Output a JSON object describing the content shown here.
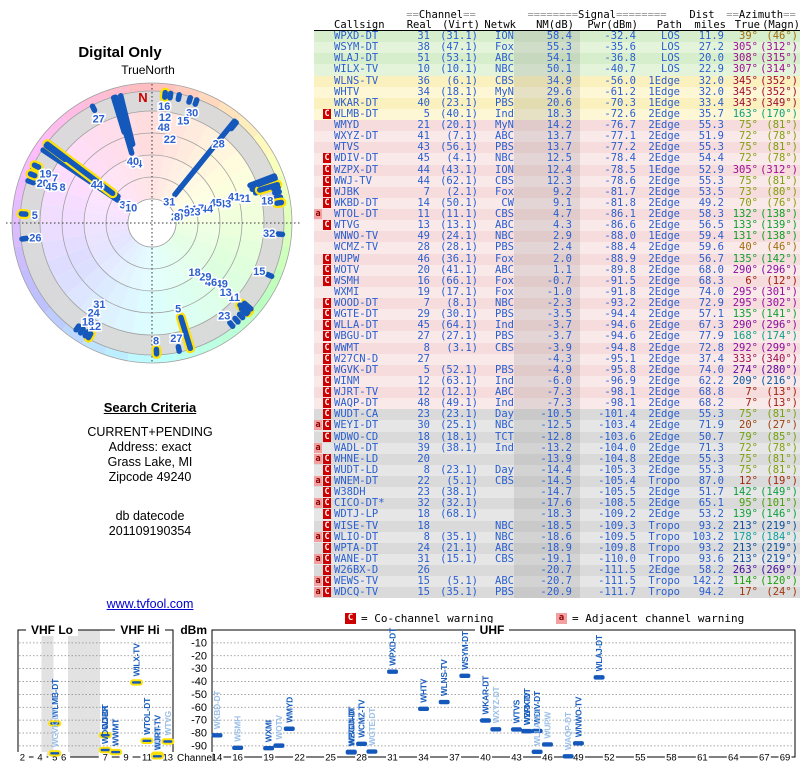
{
  "title": "Digital Only",
  "polar_labels": {
    "true_north": "TrueNorth",
    "north": "N"
  },
  "search": {
    "heading": "Search Criteria",
    "lines": [
      "CURRENT+PENDING",
      "Address: exact",
      "Grass Lake, MI",
      "Zipcode 49240"
    ],
    "db_lines": [
      "db datecode",
      "201109190354"
    ]
  },
  "footer_link": "www.tvfool.com",
  "table_header": {
    "eq2": "==",
    "eq8": "========",
    "group_channel": "Channel",
    "group_signal": "Signal",
    "group_dist": "Dist",
    "group_azimuth": "Azimuth",
    "cols": [
      "Callsign",
      "Real",
      "(Virt)",
      "Netwk",
      "NM(dB)",
      "Pwr(dBm)",
      "Path",
      "miles",
      "True",
      "(Magn)"
    ]
  },
  "legend": {
    "co_symbol": "C",
    "co_text": "= Co-channel warning",
    "adj_symbol": "a",
    "adj_text": "= Adjacent channel warning"
  },
  "bottom_axis": {
    "vhf_lo": "VHF Lo",
    "vhf_hi": "VHF Hi",
    "uhf": "UHF",
    "dbm": "dBm",
    "channel": "Channel",
    "dbm_ticks": [
      -10,
      -20,
      -30,
      -40,
      -50,
      -60,
      -70,
      -80,
      -90
    ],
    "vhf_ticks": [
      2,
      4,
      5,
      6,
      7,
      9,
      11,
      13
    ],
    "uhf_ticks": [
      14,
      16,
      19,
      22,
      25,
      28,
      31,
      34,
      37,
      40,
      43,
      46,
      49,
      52,
      55,
      58,
      61,
      64,
      67,
      69
    ]
  },
  "colors": {
    "data_blue": "#2A5FD0",
    "bar_blue": "#1458BB",
    "vhf_outline": "#FFE10A",
    "muted_label": "#9CC0E8",
    "label_blue": "#1B5FBE",
    "co_bg": "#CC0000",
    "adj_bg": "#F2A0A0",
    "band_green": "#D7EECD",
    "band_yellow": "#FAF1BE",
    "band_pink": "#F6DCDC",
    "band_gray": "#DADADA",
    "north_red": "#CC0000",
    "link_blue": "#0000CC"
  },
  "chart_data": {
    "type": "composite",
    "polar": {
      "rings": [
        24,
        46,
        68,
        90,
        112,
        132,
        140
      ],
      "bar_outer_r": 131
    },
    "bottom": {
      "pwr_visible_min": -99
    },
    "muted_bottom_labels": [
      "WKBD-DT",
      "WTVG",
      "WSMH",
      "WOTV",
      "WGTE-DT",
      "WGVK-DT",
      "WINM",
      "WLLA-DT",
      "WUPW",
      "WAQP-DT",
      "WXYZ-DT"
    ],
    "stations": [
      {
        "warn": "",
        "call": "WPXD-DT",
        "real": 31,
        "virt": "(31.1)",
        "net": "ION",
        "nm": 58.4,
        "pwr": -32.4,
        "path": "LOS",
        "miles": 11.9,
        "az": 39,
        "mag": 46
      },
      {
        "warn": "",
        "call": "WSYM-DT",
        "real": 38,
        "virt": "(47.1)",
        "net": "Fox",
        "nm": 55.3,
        "pwr": -35.6,
        "path": "LOS",
        "miles": 27.2,
        "az": 305,
        "mag": 312
      },
      {
        "warn": "",
        "call": "WLAJ-DT",
        "real": 51,
        "virt": "(53.1)",
        "net": "ABC",
        "nm": 54.1,
        "pwr": -36.8,
        "path": "LOS",
        "miles": 20.0,
        "az": 308,
        "mag": 315
      },
      {
        "warn": "",
        "call": "WILX-TV",
        "real": 10,
        "virt": "(10.1)",
        "net": "NBC",
        "nm": 50.1,
        "pwr": -40.7,
        "path": "LOS",
        "miles": 22.9,
        "az": 307,
        "mag": 314
      },
      {
        "warn": "",
        "call": "WLNS-TV",
        "real": 36,
        "virt": "(6.1)",
        "net": "CBS",
        "nm": 34.9,
        "pwr": -56.0,
        "path": "1Edge",
        "miles": 32.0,
        "az": 345,
        "mag": 352
      },
      {
        "warn": "",
        "call": "WHTV",
        "real": 34,
        "virt": "(18.1)",
        "net": "MyN",
        "nm": 29.6,
        "pwr": -61.2,
        "path": "1Edge",
        "miles": 32.0,
        "az": 345,
        "mag": 352
      },
      {
        "warn": "",
        "call": "WKAR-DT",
        "real": 40,
        "virt": "(23.1)",
        "net": "PBS",
        "nm": 20.6,
        "pwr": -70.3,
        "path": "1Edge",
        "miles": 33.4,
        "az": 343,
        "mag": 349
      },
      {
        "warn": "C",
        "call": "WLMB-DT",
        "real": 5,
        "virt": "(40.1)",
        "net": "Ind",
        "nm": 18.3,
        "pwr": -72.6,
        "path": "2Edge",
        "miles": 35.7,
        "az": 163,
        "mag": 170
      },
      {
        "warn": "",
        "call": "WMYD",
        "real": 21,
        "virt": "(20.1)",
        "net": "MyN",
        "nm": 14.2,
        "pwr": -76.7,
        "path": "2Edge",
        "miles": 55.3,
        "az": 75,
        "mag": 81
      },
      {
        "warn": "",
        "call": "WXYZ-DT",
        "real": 41,
        "virt": "(7.1)",
        "net": "ABC",
        "nm": 13.7,
        "pwr": -77.1,
        "path": "2Edge",
        "miles": 51.9,
        "az": 72,
        "mag": 78
      },
      {
        "warn": "",
        "call": "WTVS",
        "real": 43,
        "virt": "(56.1)",
        "net": "PBS",
        "nm": 13.7,
        "pwr": -77.2,
        "path": "2Edge",
        "miles": 55.3,
        "az": 75,
        "mag": 81
      },
      {
        "warn": "C",
        "call": "WDIV-DT",
        "real": 45,
        "virt": "(4.1)",
        "net": "NBC",
        "nm": 12.5,
        "pwr": -78.4,
        "path": "2Edge",
        "miles": 54.4,
        "az": 72,
        "mag": 78
      },
      {
        "warn": "C",
        "call": "WZPX-DT",
        "real": 44,
        "virt": "(43.1)",
        "net": "ION",
        "nm": 12.4,
        "pwr": -78.5,
        "path": "1Edge",
        "miles": 52.9,
        "az": 305,
        "mag": 312
      },
      {
        "warn": "C",
        "call": "WWJ-TV",
        "real": 44,
        "virt": "(62.1)",
        "net": "CBS",
        "nm": 12.3,
        "pwr": -78.6,
        "path": "2Edge",
        "miles": 55.3,
        "az": 75,
        "mag": 81
      },
      {
        "warn": "C",
        "call": "WJBK",
        "real": 7,
        "virt": "(2.1)",
        "net": "Fox",
        "nm": 9.2,
        "pwr": -81.7,
        "path": "2Edge",
        "miles": 53.5,
        "az": 73,
        "mag": 80
      },
      {
        "warn": "C",
        "call": "WKBD-DT",
        "real": 14,
        "virt": "(50.1)",
        "net": "CW",
        "nm": 9.1,
        "pwr": -81.8,
        "path": "2Edge",
        "miles": 49.2,
        "az": 70,
        "mag": 76
      },
      {
        "warn": "a",
        "call": "WTOL-DT",
        "real": 11,
        "virt": "(11.1)",
        "net": "CBS",
        "nm": 4.7,
        "pwr": -86.1,
        "path": "2Edge",
        "miles": 58.3,
        "az": 132,
        "mag": 138
      },
      {
        "warn": "C",
        "call": "WTVG",
        "real": 13,
        "virt": "(13.1)",
        "net": "ABC",
        "nm": 4.3,
        "pwr": -86.6,
        "path": "2Edge",
        "miles": 56.5,
        "az": 133,
        "mag": 139
      },
      {
        "warn": "",
        "call": "WNWO-TV",
        "real": 49,
        "virt": "(24.1)",
        "net": "NBC",
        "nm": 2.9,
        "pwr": -88.0,
        "path": "1Edge",
        "miles": 59.4,
        "az": 131,
        "mag": 138
      },
      {
        "warn": "",
        "call": "WCMZ-TV",
        "real": 28,
        "virt": "(28.1)",
        "net": "PBS",
        "nm": 2.4,
        "pwr": -88.4,
        "path": "2Edge",
        "miles": 59.6,
        "az": 40,
        "mag": 46
      },
      {
        "warn": "C",
        "call": "WUPW",
        "real": 46,
        "virt": "(36.1)",
        "net": "Fox",
        "nm": 2.0,
        "pwr": -88.9,
        "path": "2Edge",
        "miles": 56.7,
        "az": 135,
        "mag": 142
      },
      {
        "warn": "C",
        "call": "WOTV",
        "real": 20,
        "virt": "(41.1)",
        "net": "ABC",
        "nm": 1.1,
        "pwr": -89.8,
        "path": "2Edge",
        "miles": 68.0,
        "az": 290,
        "mag": 296
      },
      {
        "warn": "C",
        "call": "WSMH",
        "real": 16,
        "virt": "(66.1)",
        "net": "Fox",
        "nm": -0.7,
        "pwr": -91.5,
        "path": "2Edge",
        "miles": 68.3,
        "az": 6,
        "mag": 12
      },
      {
        "warn": "",
        "call": "WXMI",
        "real": 19,
        "virt": "(17.1)",
        "net": "Fox",
        "nm": -1.0,
        "pwr": -91.8,
        "path": "2Edge",
        "miles": 74.0,
        "az": 295,
        "mag": 301
      },
      {
        "warn": "C",
        "call": "WOOD-DT",
        "real": 7,
        "virt": "(8.1)",
        "net": "NBC",
        "nm": -2.3,
        "pwr": -93.2,
        "path": "2Edge",
        "miles": 72.9,
        "az": 295,
        "mag": 302
      },
      {
        "warn": "C",
        "call": "WGTE-DT",
        "real": 29,
        "virt": "(30.1)",
        "net": "PBS",
        "nm": -3.5,
        "pwr": -94.4,
        "path": "2Edge",
        "miles": 57.1,
        "az": 135,
        "mag": 141
      },
      {
        "warn": "C",
        "call": "WLLA-DT",
        "real": 45,
        "virt": "(64.1)",
        "net": "Ind",
        "nm": -3.7,
        "pwr": -94.6,
        "path": "2Edge",
        "miles": 67.3,
        "az": 290,
        "mag": 296
      },
      {
        "warn": "C",
        "call": "WBGU-DT",
        "real": 27,
        "virt": "(27.1)",
        "net": "PBS",
        "nm": -3.7,
        "pwr": -94.6,
        "path": "2Edge",
        "miles": 77.9,
        "az": 168,
        "mag": 174
      },
      {
        "warn": "C",
        "call": "WWMT",
        "real": 8,
        "virt": "(3.1)",
        "net": "CBS",
        "nm": -3.9,
        "pwr": -94.8,
        "path": "2Edge",
        "miles": 72.8,
        "az": 292,
        "mag": 299
      },
      {
        "warn": "C",
        "call": "W27CN-D",
        "real": 27,
        "virt": "",
        "net": "",
        "nm": -4.3,
        "pwr": -95.1,
        "path": "2Edge",
        "miles": 37.4,
        "az": 333,
        "mag": 340
      },
      {
        "warn": "C",
        "call": "WGVK-DT",
        "real": 5,
        "virt": "(52.1)",
        "net": "PBS",
        "nm": -4.9,
        "pwr": -95.8,
        "path": "2Edge",
        "miles": 74.0,
        "az": 274,
        "mag": 280
      },
      {
        "warn": "C",
        "call": "WINM",
        "real": 12,
        "virt": "(63.1)",
        "net": "Ind",
        "nm": -6.0,
        "pwr": -96.9,
        "path": "2Edge",
        "miles": 62.2,
        "az": 209,
        "mag": 216
      },
      {
        "warn": "C",
        "call": "WJRT-TV",
        "real": 12,
        "virt": "(12.1)",
        "net": "ABC",
        "nm": -7.3,
        "pwr": -98.1,
        "path": "2Edge",
        "miles": 68.8,
        "az": 7,
        "mag": 13
      },
      {
        "warn": "C",
        "call": "WAQP-DT",
        "real": 48,
        "virt": "(49.1)",
        "net": "Ind",
        "nm": -7.3,
        "pwr": -98.1,
        "path": "2Edge",
        "miles": 68.2,
        "az": 7,
        "mag": 13
      },
      {
        "warn": "C",
        "call": "WUDT-CA",
        "real": 23,
        "virt": "(23.1)",
        "net": "Day",
        "nm": -10.5,
        "pwr": -101.4,
        "path": "2Edge",
        "miles": 55.3,
        "az": 75,
        "mag": 81
      },
      {
        "warn": "aC",
        "call": "WEYI-DT",
        "real": 30,
        "virt": "(25.1)",
        "net": "NBC",
        "nm": -12.5,
        "pwr": -103.4,
        "path": "2Edge",
        "miles": 71.9,
        "az": 20,
        "mag": 27
      },
      {
        "warn": "C",
        "call": "WDWO-CD",
        "real": 18,
        "virt": "(18.1)",
        "net": "TCT",
        "nm": -12.8,
        "pwr": -103.6,
        "path": "2Edge",
        "miles": 50.7,
        "az": 79,
        "mag": 85
      },
      {
        "warn": "a",
        "call": "WADL-DT",
        "real": 39,
        "virt": "(38.1)",
        "net": "Ind",
        "nm": -13.2,
        "pwr": -104.0,
        "path": "2Edge",
        "miles": 71.3,
        "az": 72,
        "mag": 78
      },
      {
        "warn": "aC",
        "call": "WHNE-LD",
        "real": 20,
        "virt": "",
        "net": "",
        "nm": -13.9,
        "pwr": -104.8,
        "path": "2Edge",
        "miles": 55.3,
        "az": 75,
        "mag": 81
      },
      {
        "warn": "C",
        "call": "WUDT-LD",
        "real": 8,
        "virt": "(23.1)",
        "net": "Day",
        "nm": -14.4,
        "pwr": -105.3,
        "path": "2Edge",
        "miles": 55.3,
        "az": 75,
        "mag": 81
      },
      {
        "warn": "aC",
        "call": "WNEM-DT",
        "real": 22,
        "virt": "(5.1)",
        "net": "CBS",
        "nm": -14.5,
        "pwr": -105.4,
        "path": "Tropo",
        "miles": 87.0,
        "az": 12,
        "mag": 19
      },
      {
        "warn": "C",
        "call": "W38DH",
        "real": 23,
        "virt": "(38.1)",
        "net": "",
        "nm": -14.7,
        "pwr": -105.5,
        "path": "2Edge",
        "miles": 51.7,
        "az": 142,
        "mag": 149
      },
      {
        "warn": "aC",
        "call": "CICO-DT*",
        "real": 32,
        "virt": "(32.1)",
        "net": "",
        "nm": -17.6,
        "pwr": -108.5,
        "path": "2Edge",
        "miles": 65.1,
        "az": 95,
        "mag": 101
      },
      {
        "warn": "C",
        "call": "WDTJ-LP",
        "real": 18,
        "virt": "(68.1)",
        "net": "",
        "nm": -18.3,
        "pwr": -109.2,
        "path": "2Edge",
        "miles": 53.2,
        "az": 139,
        "mag": 146
      },
      {
        "warn": "C",
        "call": "WISE-TV",
        "real": 18,
        "virt": "",
        "net": "NBC",
        "nm": -18.5,
        "pwr": -109.3,
        "path": "Tropo",
        "miles": 93.2,
        "az": 213,
        "mag": 219
      },
      {
        "warn": "aC",
        "call": "WLIO-DT",
        "real": 8,
        "virt": "(35.1)",
        "net": "NBC",
        "nm": -18.6,
        "pwr": -109.5,
        "path": "Tropo",
        "miles": 103.2,
        "az": 178,
        "mag": 184
      },
      {
        "warn": "C",
        "call": "WPTA-DT",
        "real": 24,
        "virt": "(21.1)",
        "net": "ABC",
        "nm": -18.9,
        "pwr": -109.8,
        "path": "Tropo",
        "miles": 93.2,
        "az": 213,
        "mag": 219
      },
      {
        "warn": "aC",
        "call": "WANE-DT",
        "real": 31,
        "virt": "(15.1)",
        "net": "CBS",
        "nm": -19.1,
        "pwr": -110.0,
        "path": "Tropo",
        "miles": 93.6,
        "az": 213,
        "mag": 219
      },
      {
        "warn": "C",
        "call": "W26BX-D",
        "real": 26,
        "virt": "",
        "net": "",
        "nm": -20.7,
        "pwr": -111.5,
        "path": "2Edge",
        "miles": 58.2,
        "az": 263,
        "mag": 269
      },
      {
        "warn": "aC",
        "call": "WEWS-TV",
        "real": 15,
        "virt": "(5.1)",
        "net": "ABC",
        "nm": -20.7,
        "pwr": -111.5,
        "path": "Tropo",
        "miles": 142.2,
        "az": 114,
        "mag": 120
      },
      {
        "warn": "aC",
        "call": "WDCQ-TV",
        "real": 15,
        "virt": "(35.1)",
        "net": "PBS",
        "nm": -20.9,
        "pwr": -111.7,
        "path": "Tropo",
        "miles": 94.2,
        "az": 17,
        "mag": 24
      }
    ]
  }
}
